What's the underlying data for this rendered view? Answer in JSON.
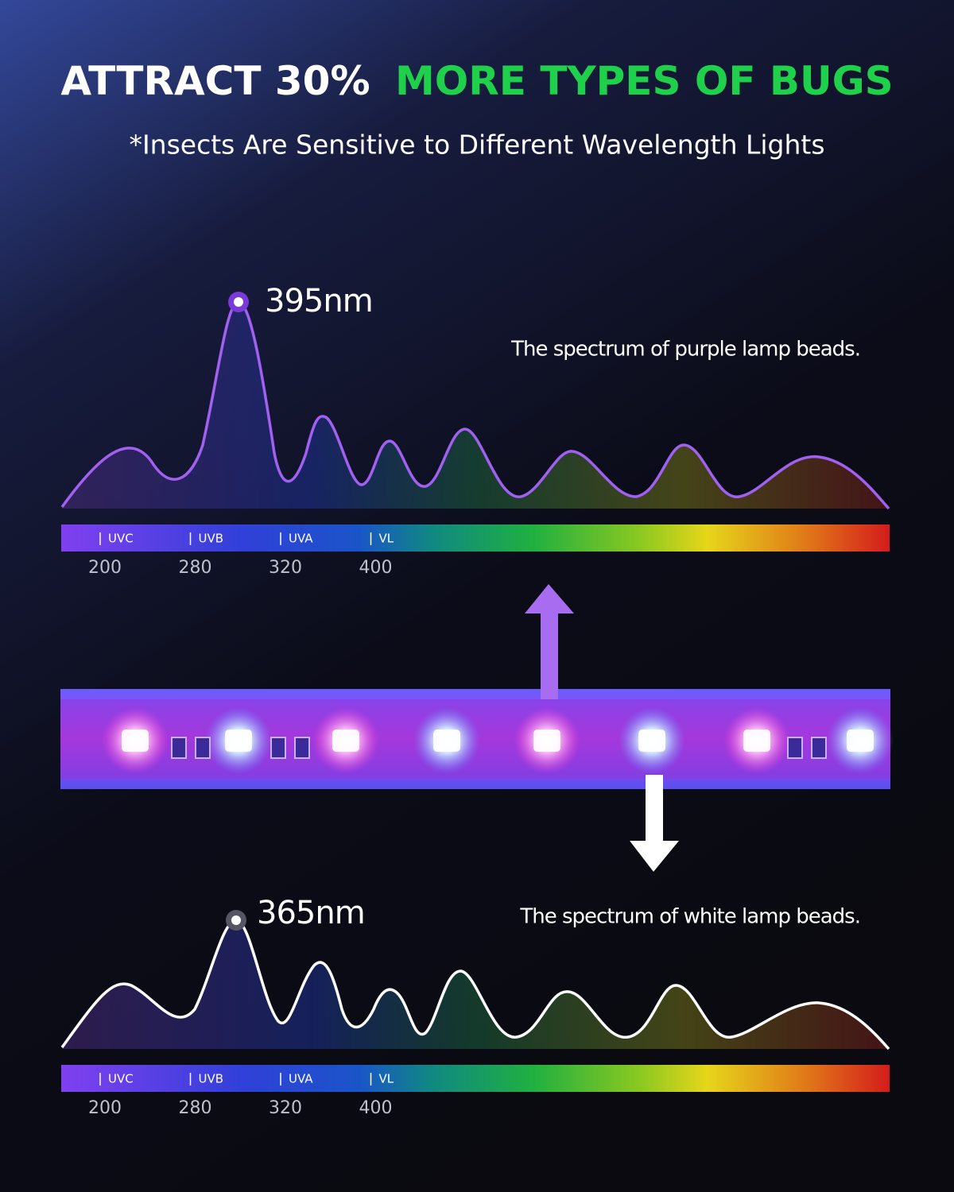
{
  "header": {
    "title_white": "ATTRACT 30%",
    "title_green": "MORE TYPES OF BUGS",
    "subtitle": "*Insects Are Sensitive to Different Wavelength Lights"
  },
  "spectra": [
    {
      "peak": "395nm",
      "caption": "The spectrum of purple lamp beads.",
      "bands": [
        "UVC",
        "UVB",
        "UVA",
        "VL"
      ],
      "wavelengths": [
        200,
        280,
        320,
        400
      ]
    },
    {
      "peak": "365nm",
      "caption": "The spectrum of white lamp beads.",
      "bands": [
        "UVC",
        "UVB",
        "UVA",
        "VL"
      ],
      "wavelengths": [
        200,
        280,
        320,
        400
      ]
    }
  ]
}
